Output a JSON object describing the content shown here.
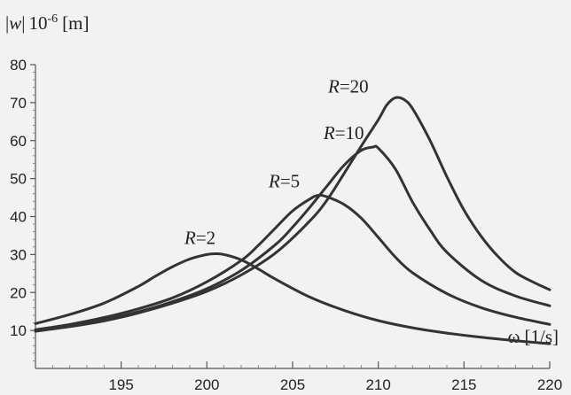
{
  "chart_data": {
    "type": "line",
    "ylabel": {
      "symbol": "w",
      "scale": "10",
      "exponent": "-6",
      "unit": "[m]"
    },
    "xlabel": {
      "symbol": "ω",
      "unit": "[1/s]"
    },
    "xlim": [
      190,
      220
    ],
    "ylim": [
      0,
      80
    ],
    "xticks": [
      195,
      200,
      205,
      210,
      215,
      220
    ],
    "yticks": [
      10,
      20,
      30,
      40,
      50,
      60,
      70,
      80
    ],
    "grid": false,
    "line_color": "#333333",
    "background": "#f2f2f2",
    "series": [
      {
        "name": "R=2",
        "label": {
          "var": "R",
          "rest": "=2"
        },
        "x": [
          190,
          192,
          194,
          196,
          197,
          198,
          199,
          200,
          200.5,
          201,
          202,
          203,
          204,
          206,
          208,
          210,
          212,
          214,
          216,
          218,
          220
        ],
        "y": [
          11.8,
          14.2,
          17.2,
          21.6,
          24.3,
          26.8,
          28.8,
          30.0,
          30.2,
          30.0,
          28.6,
          26.2,
          23.5,
          18.8,
          15.3,
          12.6,
          10.7,
          9.3,
          8.2,
          7.3,
          6.5
        ]
      },
      {
        "name": "R=5",
        "label": {
          "var": "R",
          "rest": "=5"
        },
        "x": [
          190,
          192,
          194,
          196,
          198,
          200,
          202,
          203,
          204,
          205,
          206,
          206.5,
          207,
          208,
          209,
          210,
          211,
          212,
          214,
          216,
          218,
          220
        ],
        "y": [
          10.2,
          11.6,
          13.4,
          15.7,
          18.6,
          22.8,
          28.4,
          32.4,
          37.0,
          41.5,
          44.6,
          45.6,
          45.2,
          43.2,
          39.6,
          34.5,
          29.3,
          25.2,
          19.7,
          16.0,
          13.5,
          11.6
        ]
      },
      {
        "name": "R=10",
        "label": {
          "var": "R",
          "rest": "=10"
        },
        "x": [
          190,
          192,
          194,
          196,
          198,
          200,
          202,
          204,
          205,
          206,
          207,
          208,
          209,
          209.7,
          210,
          211,
          212,
          213,
          214,
          216,
          218,
          220
        ],
        "y": [
          10.0,
          11.3,
          12.8,
          14.9,
          17.6,
          21.0,
          25.8,
          32.6,
          37.2,
          42.4,
          48.0,
          53.5,
          57.4,
          58.3,
          58.0,
          52.5,
          43.8,
          36.6,
          30.6,
          23.2,
          19.1,
          16.5
        ]
      },
      {
        "name": "R=20",
        "label": {
          "var": "R",
          "rest": "=20"
        },
        "x": [
          190,
          192,
          194,
          196,
          198,
          200,
          202,
          204,
          206,
          207,
          208,
          209,
          210,
          210.5,
          211,
          211.5,
          212,
          213,
          214,
          215,
          216,
          217,
          218,
          219,
          220
        ],
        "y": [
          9.8,
          11.0,
          12.5,
          14.6,
          17.2,
          20.3,
          24.6,
          30.4,
          38.8,
          44.3,
          51.3,
          58.5,
          65.5,
          69.4,
          71.3,
          70.8,
          68.4,
          60.2,
          50.5,
          41.7,
          34.8,
          29.4,
          25.3,
          22.8,
          20.7
        ]
      }
    ]
  }
}
